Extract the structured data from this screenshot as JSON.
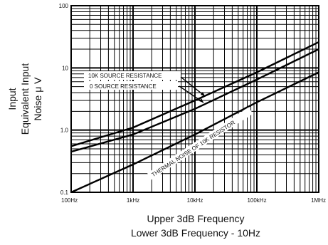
{
  "chart_data": {
    "type": "line",
    "x_scale": "log",
    "y_scale": "log",
    "xlim": [
      100,
      1000000
    ],
    "ylim": [
      0.1,
      100
    ],
    "grid": true,
    "legend": "none",
    "ylabel_lines": [
      "Input",
      "Equivalent Input",
      "Noise μ V"
    ],
    "xlabel_lines": [
      "Upper 3dB Frequency",
      "Lower 3dB Frequency - 10Hz"
    ],
    "x_ticks": [
      {
        "value": 100,
        "label": "100Hz"
      },
      {
        "value": 1000,
        "label": "1kHz"
      },
      {
        "value": 10000,
        "label": "10kHz"
      },
      {
        "value": 100000,
        "label": "100kHz"
      },
      {
        "value": 1000000,
        "label": "1MHz"
      }
    ],
    "y_ticks": [
      {
        "value": 0.1,
        "label": "0.1"
      },
      {
        "value": 1,
        "label": "1.0"
      },
      {
        "value": 10,
        "label": "10"
      },
      {
        "value": 100,
        "label": "100"
      }
    ],
    "series": [
      {
        "name": "10K SOURCE RESISTANCE",
        "x": [
          100,
          1000,
          10000,
          100000,
          1000000
        ],
        "y": [
          0.55,
          1.1,
          3.0,
          8.5,
          26
        ]
      },
      {
        "name": "0 SOURCE RESISTANCE",
        "x": [
          100,
          1000,
          10000,
          100000,
          1000000
        ],
        "y": [
          0.45,
          0.85,
          2.2,
          6.5,
          20
        ]
      },
      {
        "name": "THERMAL NOISE OF 10K RESISTOR",
        "x": [
          100,
          1000,
          10000,
          100000,
          1000000
        ],
        "y": [
          0.09,
          0.28,
          0.85,
          2.8,
          8.5
        ]
      }
    ],
    "annotations": [
      {
        "text": "10K SOURCE RESISTANCE"
      },
      {
        "text": "0 SOURCE RESISTANCE"
      },
      {
        "text": "THERMAL NOISE OF 10K RESISTOR"
      }
    ]
  }
}
